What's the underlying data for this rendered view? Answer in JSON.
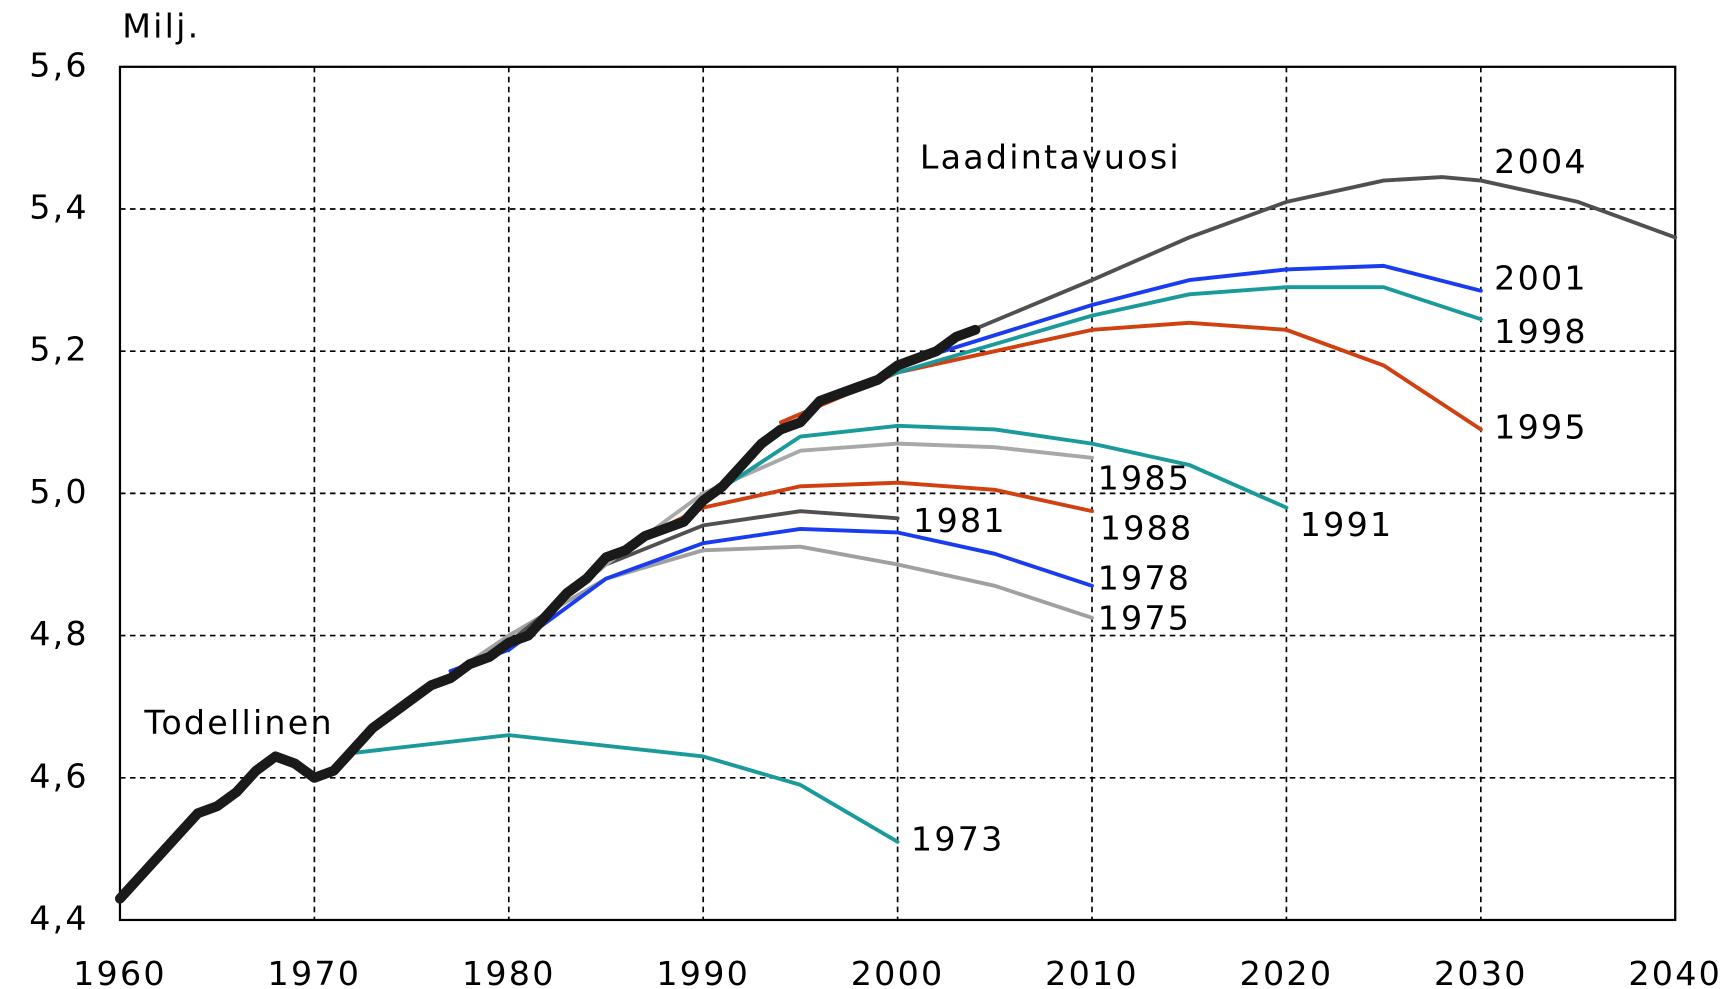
{
  "chart_data": {
    "type": "line",
    "y_axis_label": "Milj.",
    "annotation": "Laadintavuosi",
    "xlim": [
      1960,
      2040
    ],
    "xticks": [
      1960,
      1970,
      1980,
      1990,
      2000,
      2010,
      2020,
      2030,
      2040
    ],
    "ylim": [
      4.4,
      5.6
    ],
    "yticks": [
      {
        "value": 4.4,
        "label": "4,4"
      },
      {
        "value": 4.6,
        "label": "4,6"
      },
      {
        "value": 4.8,
        "label": "4,8"
      },
      {
        "value": 5.0,
        "label": "5,0"
      },
      {
        "value": 5.2,
        "label": "5,2"
      },
      {
        "value": 5.4,
        "label": "5,4"
      },
      {
        "value": 5.6,
        "label": "5,6"
      }
    ],
    "grid": true,
    "series": [
      {
        "name": "1973",
        "color": "#1a9a9a",
        "x": [
          1972,
          1980,
          1990,
          1995,
          2000
        ],
        "values": [
          4.635,
          4.66,
          4.63,
          4.59,
          4.51
        ]
      },
      {
        "name": "1975",
        "color": "#a0a0a0",
        "x": [
          1974,
          1980,
          1985,
          1990,
          1995,
          2000,
          2005,
          2010
        ],
        "values": [
          4.69,
          4.8,
          4.88,
          4.92,
          4.925,
          4.9,
          4.87,
          4.825
        ]
      },
      {
        "name": "1978",
        "color": "#1a3cf0",
        "x": [
          1977,
          1980,
          1985,
          1990,
          1995,
          2000,
          2005,
          2010
        ],
        "values": [
          4.75,
          4.78,
          4.88,
          4.93,
          4.95,
          4.945,
          4.915,
          4.87
        ]
      },
      {
        "name": "1981",
        "color": "#505050",
        "x": [
          1980,
          1985,
          1990,
          1995,
          2000
        ],
        "values": [
          4.79,
          4.9,
          4.955,
          4.975,
          4.965
        ]
      },
      {
        "name": "1985",
        "color": "#a8a8a8",
        "x": [
          1984,
          1990,
          1995,
          2000,
          2005,
          2010
        ],
        "values": [
          4.88,
          5.0,
          5.06,
          5.07,
          5.065,
          5.05
        ]
      },
      {
        "name": "1988",
        "color": "#d04010",
        "x": [
          1987,
          1990,
          1995,
          2000,
          2005,
          2010
        ],
        "values": [
          4.94,
          4.98,
          5.01,
          5.015,
          5.005,
          4.975
        ]
      },
      {
        "name": "1991",
        "color": "#1a9a9a",
        "x": [
          1990,
          1995,
          2000,
          2005,
          2010,
          2015,
          2020
        ],
        "values": [
          4.99,
          5.08,
          5.095,
          5.09,
          5.07,
          5.04,
          4.98
        ]
      },
      {
        "name": "1995",
        "color": "#d04010",
        "x": [
          1994,
          2000,
          2005,
          2010,
          2015,
          2020,
          2025,
          2030
        ],
        "values": [
          5.1,
          5.17,
          5.2,
          5.23,
          5.24,
          5.23,
          5.18,
          5.09
        ]
      },
      {
        "name": "1998",
        "color": "#1a9a9a",
        "x": [
          1997,
          2000,
          2010,
          2015,
          2020,
          2025,
          2030
        ],
        "values": [
          5.14,
          5.17,
          5.25,
          5.28,
          5.29,
          5.29,
          5.245
        ]
      },
      {
        "name": "2001",
        "color": "#1a3cf0",
        "x": [
          2000,
          2010,
          2015,
          2020,
          2025,
          2030
        ],
        "values": [
          5.18,
          5.265,
          5.3,
          5.315,
          5.32,
          5.285
        ]
      },
      {
        "name": "2004",
        "color": "#505050",
        "x": [
          2003,
          2010,
          2015,
          2020,
          2025,
          2028,
          2030,
          2035,
          2040
        ],
        "values": [
          5.22,
          5.3,
          5.36,
          5.41,
          5.44,
          5.445,
          5.44,
          5.41,
          5.36
        ]
      },
      {
        "name": "Todellinen",
        "color": "#1a1a1a",
        "x": [
          1960,
          1961,
          1962,
          1963,
          1964,
          1965,
          1966,
          1967,
          1968,
          1969,
          1970,
          1971,
          1972,
          1973,
          1974,
          1975,
          1976,
          1977,
          1978,
          1979,
          1980,
          1981,
          1982,
          1983,
          1984,
          1985,
          1986,
          1987,
          1988,
          1989,
          1990,
          1991,
          1992,
          1993,
          1994,
          1995,
          1996,
          1997,
          1998,
          1999,
          2000,
          2001,
          2002,
          2003,
          2004
        ],
        "values": [
          4.43,
          4.46,
          4.49,
          4.52,
          4.55,
          4.56,
          4.58,
          4.61,
          4.63,
          4.62,
          4.6,
          4.61,
          4.64,
          4.67,
          4.69,
          4.71,
          4.73,
          4.74,
          4.76,
          4.77,
          4.79,
          4.8,
          4.83,
          4.86,
          4.88,
          4.91,
          4.92,
          4.94,
          4.95,
          4.96,
          4.99,
          5.01,
          5.04,
          5.07,
          5.09,
          5.1,
          5.13,
          5.14,
          5.15,
          5.16,
          5.18,
          5.19,
          5.2,
          5.22,
          5.23
        ]
      }
    ]
  }
}
